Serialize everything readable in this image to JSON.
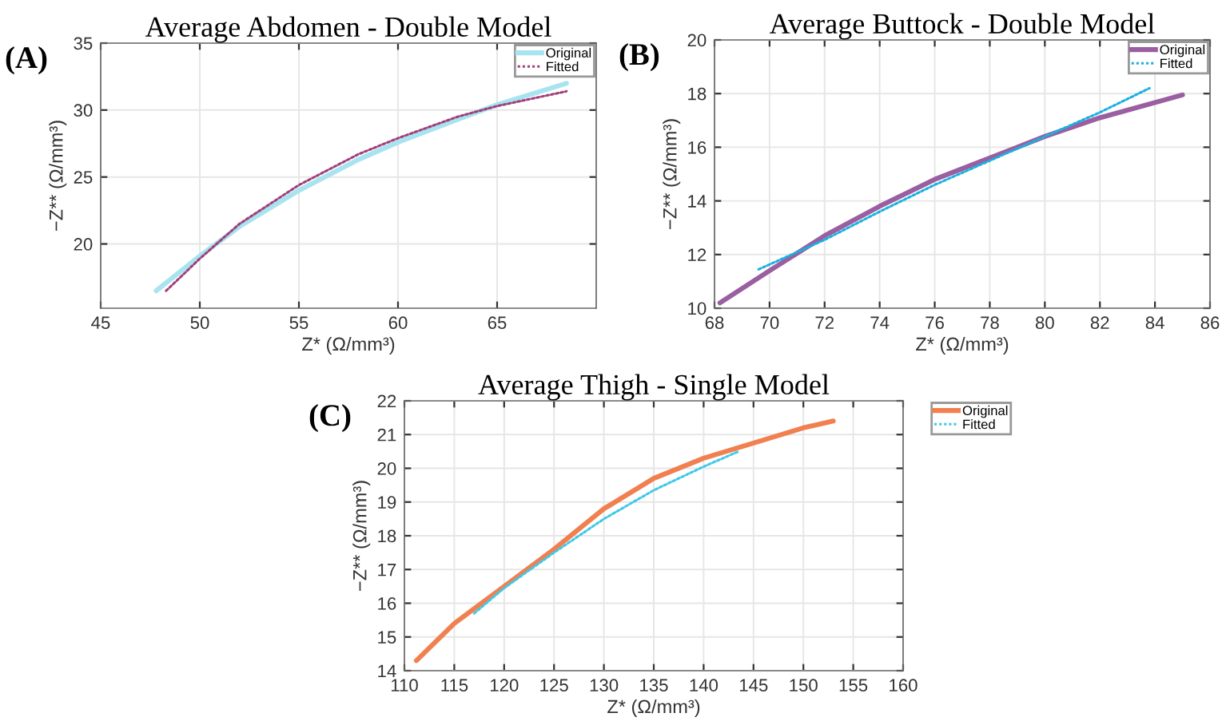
{
  "chart_data": [
    {
      "type": "line",
      "title": "Average Abdomen - Double Model",
      "xlabel": "Z* (Ω/mm³)",
      "ylabel": "−Z** (Ω/mm³)",
      "annotations": [
        "(A)"
      ],
      "xlim": [
        45,
        70
      ],
      "ylim": [
        15.2,
        35
      ],
      "xticks": [
        45,
        50,
        55,
        60,
        65
      ],
      "yticks": [
        20,
        25,
        30,
        35
      ],
      "grid": true,
      "legend": "top right",
      "series": [
        {
          "name": "Original",
          "color": "#a8e4f0",
          "line_style": "solid",
          "x": [
            47.8,
            50,
            52,
            55,
            58,
            60,
            63,
            65,
            68.5
          ],
          "values": [
            16.5,
            19.1,
            21.3,
            24.0,
            26.3,
            27.6,
            29.3,
            30.4,
            32.0
          ]
        },
        {
          "name": "Fitted",
          "color": "#a0407a",
          "line_style": "dotted",
          "x": [
            48.3,
            50,
            52,
            55,
            58,
            60,
            63,
            65,
            68.5
          ],
          "values": [
            16.5,
            18.9,
            21.5,
            24.4,
            26.7,
            27.9,
            29.5,
            30.3,
            31.4
          ]
        }
      ]
    },
    {
      "type": "line",
      "title": "Average Buttock - Double Model",
      "xlabel": "Z* (Ω/mm³)",
      "ylabel": "−Z** (Ω/mm³)",
      "annotations": [
        "(B)"
      ],
      "xlim": [
        68,
        86
      ],
      "ylim": [
        10,
        20
      ],
      "xticks": [
        68,
        70,
        72,
        74,
        76,
        78,
        80,
        82,
        84,
        86
      ],
      "yticks": [
        10,
        12,
        14,
        16,
        18,
        20
      ],
      "grid": true,
      "legend": "top right",
      "series": [
        {
          "name": "Original",
          "color": "#9a5fa0",
          "line_style": "solid",
          "x": [
            68.2,
            70,
            72,
            74,
            76,
            78,
            80,
            82,
            85
          ],
          "values": [
            10.2,
            11.4,
            12.7,
            13.8,
            14.8,
            15.6,
            16.4,
            17.1,
            17.95
          ]
        },
        {
          "name": "Fitted",
          "color": "#1ab0e0",
          "line_style": "dotted",
          "x": [
            69.6,
            72,
            74,
            76,
            78,
            80,
            82,
            83.8
          ],
          "values": [
            11.45,
            12.55,
            13.6,
            14.6,
            15.5,
            16.4,
            17.3,
            18.2
          ]
        }
      ]
    },
    {
      "type": "line",
      "title": "Average Thigh - Single Model",
      "xlabel": "Z* (Ω/mm³)",
      "ylabel": "−Z** (Ω/mm³)",
      "annotations": [
        "(C)"
      ],
      "xlim": [
        110,
        160
      ],
      "ylim": [
        14,
        22
      ],
      "xticks": [
        110,
        115,
        120,
        125,
        130,
        135,
        140,
        145,
        150,
        155,
        160
      ],
      "yticks": [
        14,
        15,
        16,
        17,
        18,
        19,
        20,
        21,
        22
      ],
      "grid": true,
      "legend": "top right",
      "series": [
        {
          "name": "Original",
          "color": "#f08050",
          "line_style": "solid",
          "x": [
            111.2,
            115,
            120,
            125,
            130,
            135,
            140,
            145,
            150,
            153
          ],
          "values": [
            14.3,
            15.4,
            16.5,
            17.6,
            18.8,
            19.7,
            20.3,
            20.75,
            21.2,
            21.4
          ]
        },
        {
          "name": "Fitted",
          "color": "#40c8e8",
          "line_style": "dotted",
          "x": [
            117,
            120,
            125,
            130,
            135,
            140,
            143.5
          ],
          "values": [
            15.7,
            16.45,
            17.5,
            18.5,
            19.35,
            20.05,
            20.5
          ]
        }
      ]
    }
  ]
}
